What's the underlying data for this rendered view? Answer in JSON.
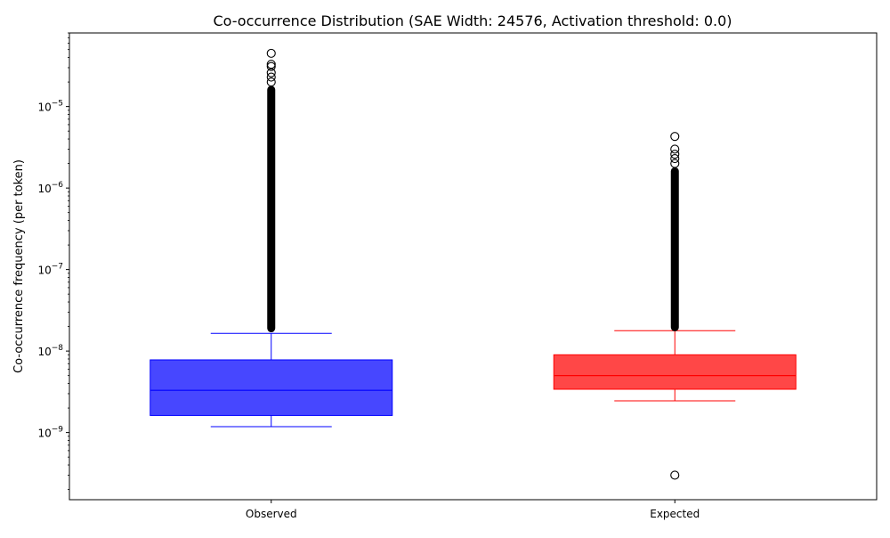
{
  "chart_data": {
    "type": "box",
    "title": "Co-occurrence Distribution (SAE Width: 24576, Activation threshold: 0.0)",
    "xlabel": "",
    "ylabel": "Co-occurrence frequency (per token)",
    "yscale": "log",
    "ylim": [
      1.5e-10,
      8e-05
    ],
    "grid": false,
    "legend": "none",
    "categories": [
      "Observed",
      "Expected"
    ],
    "y_ticks": [
      {
        "value": 1e-09,
        "base": "10",
        "exp": "−9"
      },
      {
        "value": 1e-08,
        "base": "10",
        "exp": "−8"
      },
      {
        "value": 1e-07,
        "base": "10",
        "exp": "−7"
      },
      {
        "value": 1e-06,
        "base": "10",
        "exp": "−6"
      },
      {
        "value": 1e-05,
        "base": "10",
        "exp": "−5"
      }
    ],
    "series": [
      {
        "category": "Observed",
        "color": "#0000ff",
        "fill": "#4747ff",
        "whisker_low": 1.18e-09,
        "q1": 1.62e-09,
        "median": 3.3e-09,
        "q3": 7.8e-09,
        "whisker_high": 1.65e-08,
        "outlier_band": [
          1.7e-08,
          1.8e-05
        ],
        "outliers": [
          2e-05,
          2.3e-05,
          2.6e-05,
          3.1e-05,
          3.3e-05,
          4.5e-05
        ]
      },
      {
        "category": "Expected",
        "color": "#ff0000",
        "fill": "#ff4747",
        "whisker_low": 2.45e-09,
        "q1": 3.4e-09,
        "median": 5e-09,
        "q3": 9e-09,
        "whisker_high": 1.78e-08,
        "outlier_band": [
          1.75e-08,
          1.8e-06
        ],
        "outliers": [
          2e-06,
          2.3e-06,
          2.6e-06,
          3e-06,
          4.3e-06,
          3e-10
        ]
      }
    ]
  }
}
